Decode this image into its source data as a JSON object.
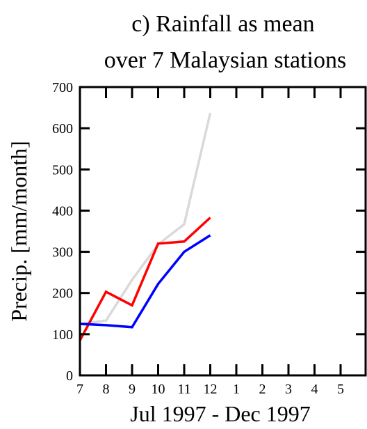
{
  "chart_data": {
    "type": "line",
    "title": [
      "c) Rainfall as mean",
      "over 7 Malaysian stations"
    ],
    "xlabel": "Jul 1997 - Dec 1997",
    "ylabel": "Precip. [mm/month]",
    "x_tick_labels": [
      "7",
      "8",
      "9",
      "10",
      "11",
      "12",
      "1",
      "2",
      "3",
      "4",
      "5"
    ],
    "y_ticks": [
      0,
      100,
      200,
      300,
      400,
      500,
      600,
      700
    ],
    "ylim": [
      0,
      700
    ],
    "x": [
      7,
      8,
      9,
      10,
      11,
      12
    ],
    "grid": false,
    "series": [
      {
        "color": "#d9d9d9",
        "values": [
          125,
          133,
          232,
          318,
          367,
          637
        ]
      },
      {
        "color": "#ff0000",
        "values": [
          85,
          203,
          170,
          320,
          325,
          383
        ]
      },
      {
        "color": "#0000ff",
        "values": [
          125,
          122,
          117,
          222,
          300,
          340
        ]
      }
    ]
  }
}
